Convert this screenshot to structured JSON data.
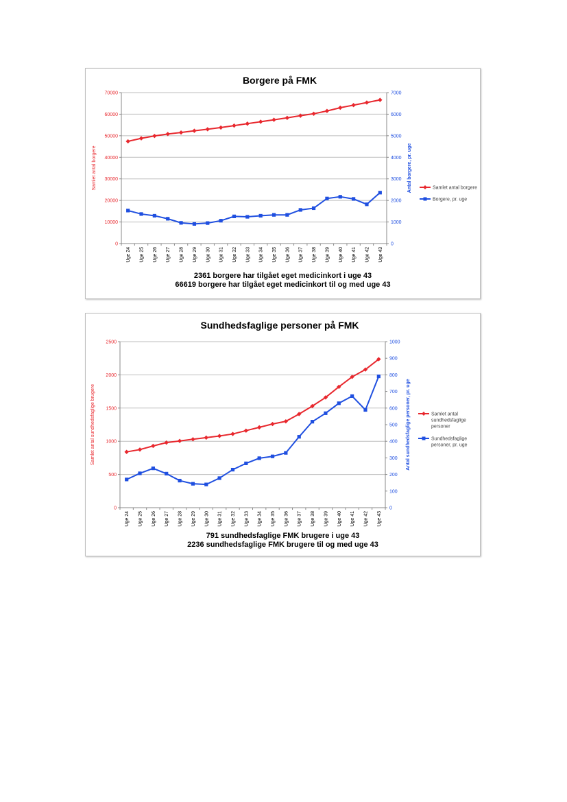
{
  "chart_data": [
    {
      "type": "line",
      "title": "Borgere på FMK",
      "categories": [
        "Uge 24",
        "Uge 25",
        "Uge 26",
        "Uge 27",
        "Uge 28",
        "Uge 29",
        "Uge 30",
        "Uge 31",
        "Uge 32",
        "Uge 33",
        "Uge 34",
        "Uge 35",
        "Uge 36",
        "Uge 37",
        "Uge 38",
        "Uge 39",
        "Uge 40",
        "Uge 41",
        "Uge 42",
        "Uge 43"
      ],
      "ylabel_left": "Samlet antal borgere",
      "ylabel_right": "Antal borgere, pr. uge",
      "ylim_left": [
        0,
        70000
      ],
      "yticks_left": [
        "0",
        "10000",
        "20000",
        "30000",
        "40000",
        "50000",
        "60000",
        "70000"
      ],
      "ylim_right": [
        0,
        7000
      ],
      "yticks_right": [
        "0",
        "1000",
        "2000",
        "3000",
        "4000",
        "5000",
        "6000",
        "7000"
      ],
      "grid": true,
      "legend_position": "right",
      "series": [
        {
          "name": "Samlet antal borgere",
          "axis": "left",
          "color": "#e8282e",
          "marker": "diamond",
          "values": [
            47400,
            48800,
            49900,
            50800,
            51500,
            52300,
            53000,
            53800,
            54700,
            55600,
            56500,
            57400,
            58300,
            59300,
            60200,
            61500,
            63000,
            64200,
            65400,
            66619
          ]
        },
        {
          "name": "Borgere, pr. uge",
          "axis": "right",
          "color": "#1f4fe0",
          "marker": "square",
          "values": [
            1530,
            1370,
            1290,
            1150,
            960,
            910,
            950,
            1060,
            1260,
            1240,
            1290,
            1330,
            1330,
            1560,
            1640,
            2090,
            2170,
            2070,
            1820,
            2361
          ]
        }
      ],
      "caption": [
        "2361 borgere har tilgået eget medicinkort i uge 43",
        "66619 borgere har tilgået eget medicinkort til og med uge 43"
      ]
    },
    {
      "type": "line",
      "title": "Sundhedsfaglige personer på FMK",
      "categories": [
        "Uge 24",
        "Uge 25",
        "Uge 26",
        "Uge 27",
        "Uge 28",
        "Uge 29",
        "Uge 30",
        "Uge 31",
        "Uge 32",
        "Uge 33",
        "Uge 34",
        "Uge 35",
        "Uge 36",
        "Uge 37",
        "Uge 38",
        "Uge 39",
        "Uge 40",
        "Uge 41",
        "Uge 42",
        "Uge 43"
      ],
      "ylabel_left": "Samlet antal sundhedsfaglige brugere",
      "ylabel_right": "Antal sundhedsfaglige personer, pr. uge",
      "ylim_left": [
        0,
        2500
      ],
      "yticks_left": [
        "0",
        "500",
        "1000",
        "1500",
        "2000",
        "2500"
      ],
      "ylim_right": [
        0,
        1000
      ],
      "yticks_right": [
        "0",
        "100",
        "200",
        "300",
        "400",
        "500",
        "600",
        "700",
        "800",
        "900",
        "1000"
      ],
      "grid": true,
      "legend_position": "right",
      "series": [
        {
          "name": "Samlet antal sundhedsfaglige personer",
          "axis": "left",
          "color": "#e8282e",
          "marker": "diamond",
          "values": [
            840,
            875,
            930,
            980,
            1005,
            1030,
            1055,
            1080,
            1110,
            1160,
            1210,
            1260,
            1300,
            1410,
            1530,
            1660,
            1820,
            1970,
            2080,
            2236
          ]
        },
        {
          "name": "Sundhedsfaglige personer, pr. uge",
          "axis": "right",
          "color": "#1f4fe0",
          "marker": "square",
          "values": [
            170,
            207,
            237,
            205,
            163,
            144,
            140,
            178,
            229,
            267,
            298,
            309,
            330,
            427,
            518,
            569,
            629,
            672,
            589,
            791
          ]
        }
      ],
      "caption": [
        "791 sundhedsfaglige FMK brugere i uge 43",
        "2236 sundhedsfaglige FMK brugere til og med uge 43"
      ]
    }
  ]
}
